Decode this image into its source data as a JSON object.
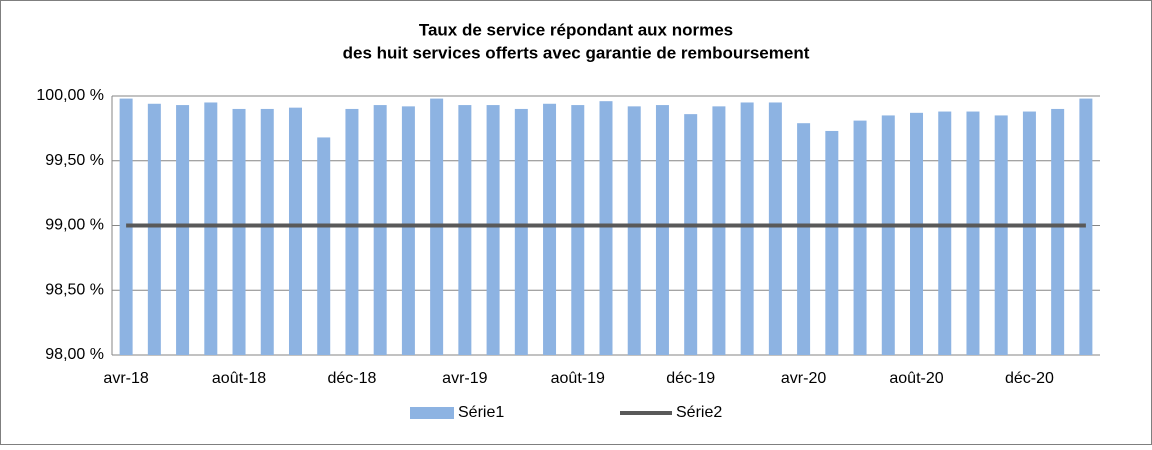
{
  "chart_data": {
    "type": "bar",
    "title": [
      "Taux de service répondant aux normes",
      "des huit services offerts avec garantie de remboursement"
    ],
    "categories": [
      "avr-18",
      null,
      null,
      null,
      "août-18",
      null,
      null,
      null,
      "déc-18",
      null,
      null,
      null,
      "avr-19",
      null,
      null,
      null,
      "août-19",
      null,
      null,
      null,
      "déc-19",
      null,
      null,
      null,
      "avr-20",
      null,
      null,
      null,
      "août-20",
      null,
      null,
      null,
      "déc-20",
      null,
      null
    ],
    "series": [
      {
        "name": "Série1",
        "type": "bar",
        "color": "#8db3e2",
        "values": [
          99.98,
          99.94,
          99.93,
          99.95,
          99.9,
          99.9,
          99.91,
          99.68,
          99.9,
          99.93,
          99.92,
          99.98,
          99.93,
          99.93,
          99.9,
          99.94,
          99.93,
          99.96,
          99.92,
          99.93,
          99.86,
          99.92,
          99.95,
          99.95,
          99.79,
          99.73,
          99.81,
          99.85,
          99.87,
          99.88,
          99.88,
          99.85,
          99.88,
          99.9,
          99.98
        ]
      },
      {
        "name": "Série2",
        "type": "line",
        "color": "#595959",
        "values": [
          99,
          99,
          99,
          99,
          99,
          99,
          99,
          99,
          99,
          99,
          99,
          99,
          99,
          99,
          99,
          99,
          99,
          99,
          99,
          99,
          99,
          99,
          99,
          99,
          99,
          99,
          99,
          99,
          99,
          99,
          99,
          99,
          99,
          99,
          99
        ]
      }
    ],
    "ylim": [
      98,
      100
    ],
    "yticks": [
      {
        "value": 98,
        "label": "98,00 %"
      },
      {
        "value": 98.5,
        "label": "98,50 %"
      },
      {
        "value": 99,
        "label": "99,00 %"
      },
      {
        "value": 99.5,
        "label": "99,50 %"
      },
      {
        "value": 100,
        "label": "100,00 %"
      }
    ],
    "grid": true,
    "legend": "bottom"
  }
}
